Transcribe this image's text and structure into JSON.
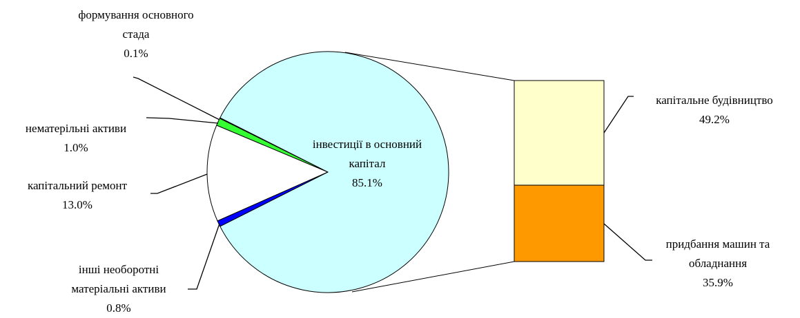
{
  "chart_data": {
    "type": "pie",
    "categories": [
      "інвестиції в основний капітал",
      "формування основного стада",
      "нематерільні активи",
      "капітальний ремонт",
      "інші необоротні матеріальні активи"
    ],
    "values": [
      85.1,
      0.1,
      1.0,
      13.0,
      0.8
    ],
    "value_labels": [
      "85.1%",
      "0.1%",
      "1.0%",
      "13.0%",
      "0.8%"
    ],
    "colors": [
      "#ccffff",
      "#000080",
      "#33ff33",
      "#ffffff",
      "#0000ff"
    ],
    "bar": {
      "categories": [
        "капітальне будівництво",
        "придбання машин та обладнання"
      ],
      "values": [
        49.2,
        35.9
      ],
      "value_labels": [
        "49.2%",
        "35.9%"
      ],
      "colors": [
        "#ffffcc",
        "#ff9900"
      ]
    }
  }
}
